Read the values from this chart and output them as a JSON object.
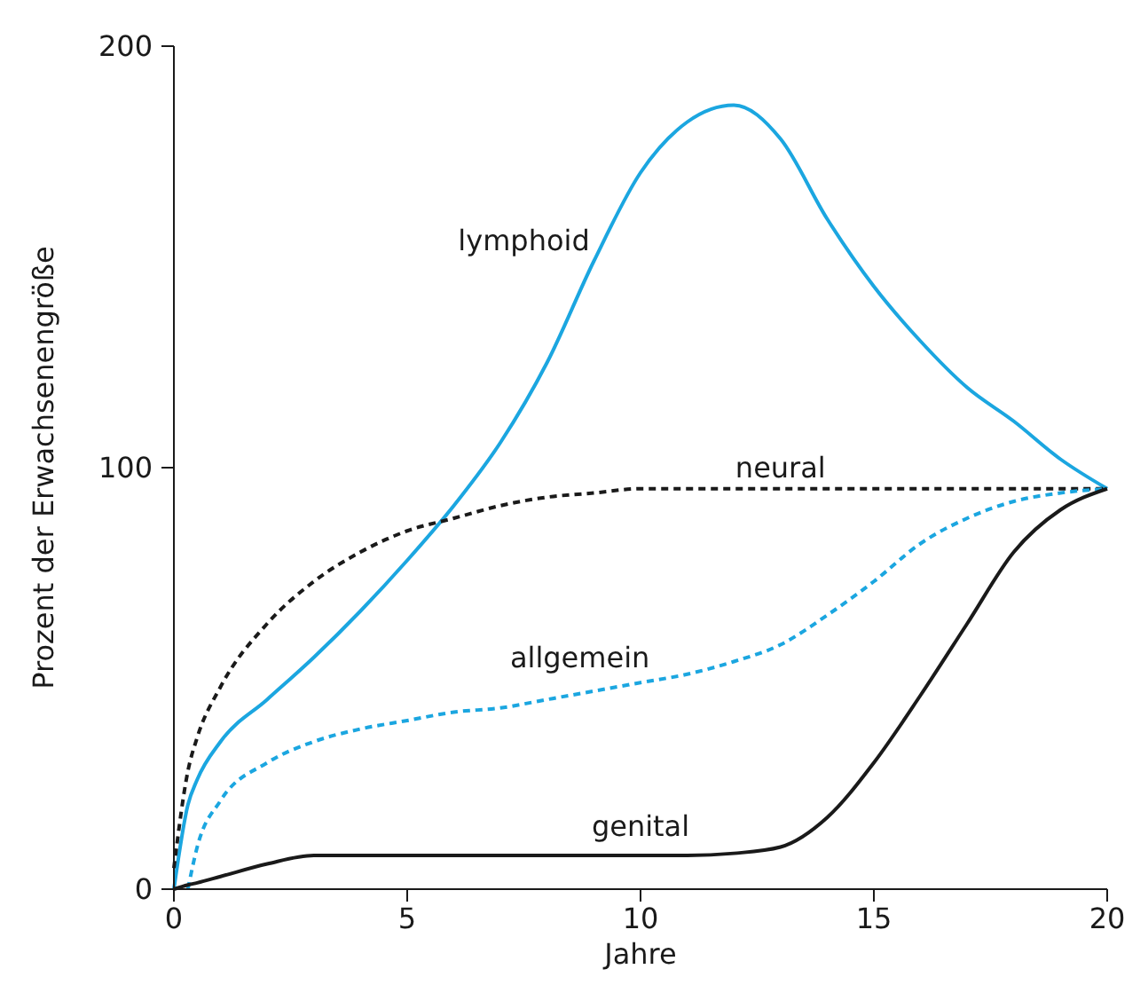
{
  "chart_data": {
    "type": "line",
    "xlabel": "Jahre",
    "ylabel": "Prozent der Erwachsenengröße",
    "xlim": [
      0,
      20
    ],
    "ylim": [
      0,
      200
    ],
    "xticks": [
      0,
      5,
      10,
      15,
      20
    ],
    "yticks": [
      0,
      100,
      200
    ],
    "grid": false,
    "marker": "none",
    "x": [
      0,
      0.3,
      0.5,
      1,
      2,
      3,
      4,
      5,
      6,
      7,
      8,
      9,
      10,
      11,
      12,
      13,
      14,
      15,
      16,
      17,
      18,
      19,
      20
    ],
    "series": [
      {
        "name": "lymphoid",
        "color": "#1ba6e0",
        "line_style": "solid",
        "values": [
          0,
          20,
          26,
          35,
          45,
          55,
          66,
          78,
          91,
          106,
          125,
          149,
          170,
          182,
          186,
          178,
          159,
          143,
          130,
          119,
          111,
          102,
          95
        ]
      },
      {
        "name": "neural",
        "color": "#1a1a1a",
        "line_style": "dashed",
        "values": [
          5,
          28,
          36,
          48,
          63,
          73,
          80,
          85,
          88,
          91,
          93,
          94,
          95,
          95,
          95,
          95,
          95,
          95,
          95,
          95,
          95,
          95,
          95
        ]
      },
      {
        "name": "allgemein",
        "color": "#1ba6e0",
        "line_style": "dashed",
        "values": [
          null,
          0,
          10,
          21,
          30,
          35,
          38,
          40,
          42,
          43,
          45,
          47,
          49,
          51,
          54,
          58,
          65,
          73,
          82,
          88,
          92,
          94,
          95
        ]
      },
      {
        "name": "genital",
        "color": "#1a1a1a",
        "line_style": "solid",
        "values": [
          0,
          1,
          1.5,
          3,
          6,
          8,
          8,
          8,
          8,
          8,
          8,
          8,
          8,
          8,
          8.5,
          10,
          17,
          30,
          46,
          63,
          80,
          90,
          95
        ]
      }
    ]
  }
}
